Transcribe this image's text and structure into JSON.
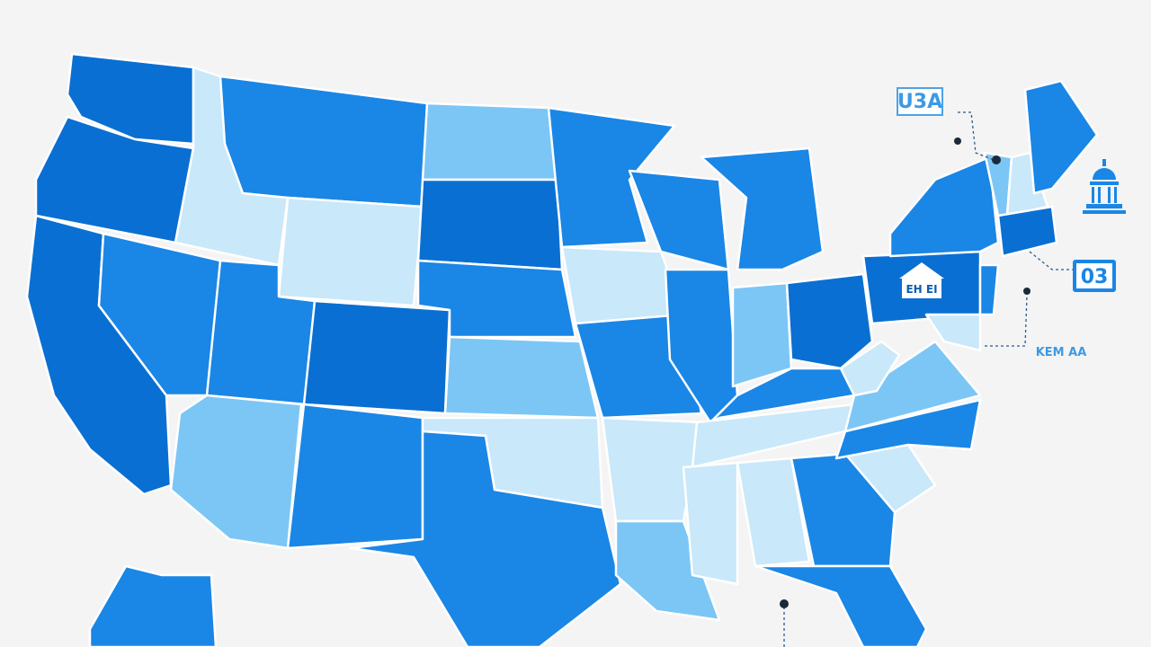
{
  "labels": {
    "top_badge": "U3A",
    "right_badge": "03",
    "building_sign": "EH EI",
    "caption": "KEM AA"
  }
}
